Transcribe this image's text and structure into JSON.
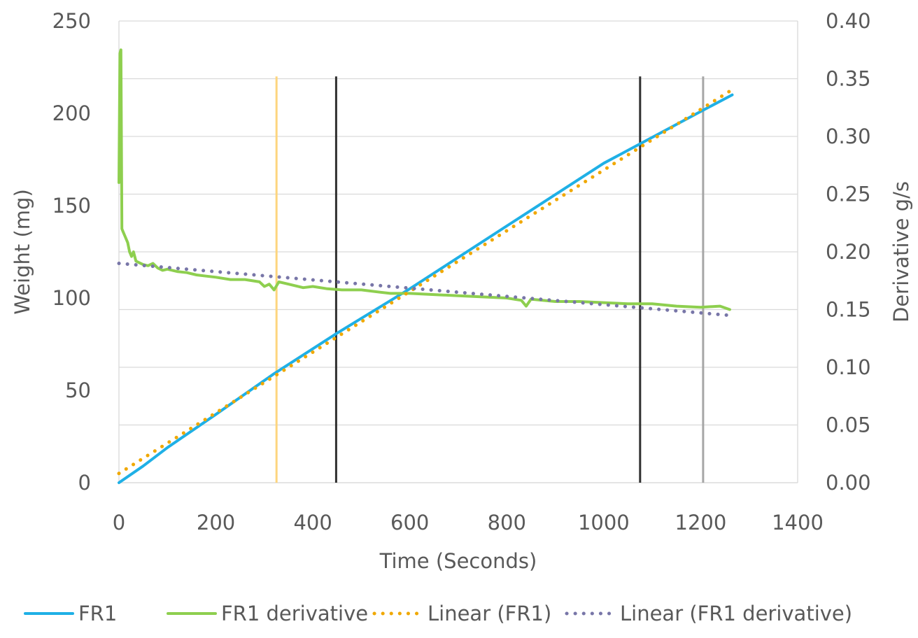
{
  "chart_data": {
    "type": "line",
    "title": "",
    "xlabel": "Time (Seconds)",
    "ylabel": "Weight (mg)",
    "y2label": "Derivative g/s",
    "xlim": [
      0,
      1400
    ],
    "ylim": [
      0,
      250
    ],
    "y2lim": [
      0,
      0.4
    ],
    "x_ticks": [
      "0",
      "200",
      "400",
      "600",
      "800",
      "1000",
      "1200",
      "1400"
    ],
    "y_ticks": [
      "0",
      "50",
      "100",
      "150",
      "200",
      "250"
    ],
    "y2_ticks": [
      "0.00",
      "0.05",
      "0.10",
      "0.15",
      "0.20",
      "0.25",
      "0.30",
      "0.35",
      "0.40"
    ],
    "grid": "horizontal",
    "legend_position": "bottom",
    "colors": {
      "fr1": "#1fb0e6",
      "fr1_derivative": "#8ecf4f",
      "linear_fr1": "#f0a800",
      "linear_fr1_derivative": "#7876a8",
      "marker_yellow": "#fdd57e",
      "marker_dark": "#303030",
      "marker_gray": "#a6a6a6"
    },
    "series": [
      {
        "name": "FR1",
        "axis": "left",
        "style": "solid",
        "x": [
          0,
          50,
          100,
          200,
          320,
          450,
          600,
          800,
          1000,
          1200,
          1265
        ],
        "y": [
          0,
          9,
          19,
          37,
          59,
          81,
          105,
          139,
          173,
          201,
          210
        ]
      },
      {
        "name": "FR1 derivative",
        "axis": "right",
        "style": "solid",
        "x": [
          0,
          2,
          4,
          5,
          6,
          8,
          12,
          18,
          22,
          26,
          30,
          35,
          40,
          50,
          60,
          70,
          80,
          90,
          100,
          120,
          140,
          160,
          180,
          200,
          230,
          260,
          290,
          300,
          310,
          320,
          330,
          350,
          380,
          400,
          430,
          460,
          500,
          540,
          560,
          600,
          650,
          700,
          750,
          800,
          830,
          840,
          850,
          900,
          950,
          1000,
          1050,
          1100,
          1150,
          1200,
          1240,
          1260
        ],
        "y": [
          0.26,
          0.372,
          0.375,
          0.3,
          0.22,
          0.218,
          0.214,
          0.208,
          0.2,
          0.196,
          0.2,
          0.192,
          0.191,
          0.189,
          0.188,
          0.19,
          0.186,
          0.184,
          0.185,
          0.183,
          0.182,
          0.18,
          0.179,
          0.178,
          0.176,
          0.176,
          0.174,
          0.17,
          0.172,
          0.167,
          0.174,
          0.172,
          0.169,
          0.17,
          0.168,
          0.167,
          0.167,
          0.165,
          0.164,
          0.164,
          0.163,
          0.162,
          0.161,
          0.16,
          0.158,
          0.153,
          0.159,
          0.157,
          0.157,
          0.156,
          0.155,
          0.155,
          0.153,
          0.152,
          0.153,
          0.15
        ]
      },
      {
        "name": "Linear (FR1)",
        "axis": "left",
        "style": "dotted",
        "x": [
          0,
          1260
        ],
        "y": [
          5,
          212
        ]
      },
      {
        "name": "Linear (FR1 derivative)",
        "axis": "right",
        "style": "dotted",
        "x": [
          0,
          1260
        ],
        "y": [
          0.19,
          0.145
        ]
      }
    ],
    "vertical_markers": [
      {
        "x": 325,
        "color": "marker_yellow",
        "ytop": 220
      },
      {
        "x": 448,
        "color": "marker_dark",
        "ytop": 220
      },
      {
        "x": 1075,
        "color": "marker_dark",
        "ytop": 220
      },
      {
        "x": 1205,
        "color": "marker_gray",
        "ytop": 220
      }
    ]
  }
}
